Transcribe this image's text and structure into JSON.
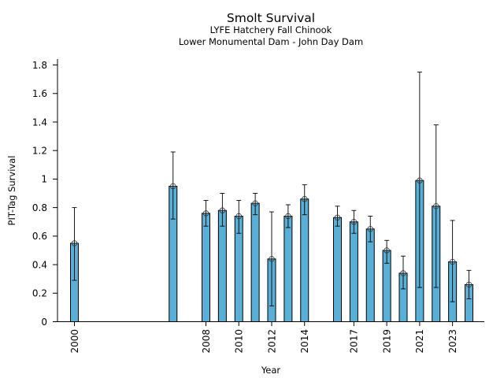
{
  "chart_data": {
    "type": "bar",
    "title": "Smolt Survival",
    "subtitle_lines": [
      "LYFE Hatchery Fall Chinook",
      "Lower Monumental Dam - John Day Dam"
    ],
    "xlabel": "Year",
    "ylabel": "PIT-Tag Survival",
    "xlim": [
      1999,
      2025
    ],
    "ylim": [
      0,
      1.83
    ],
    "yticks": [
      0,
      0.2,
      0.4,
      0.6,
      0.8,
      1,
      1.2,
      1.4,
      1.6,
      1.8
    ],
    "ytick_labels": [
      "0",
      "0.2",
      "0.4",
      "0.6",
      "0.8",
      "1",
      "1.2",
      "1.4",
      "1.6",
      "1.8"
    ],
    "xticks": [
      2000,
      2008,
      2010,
      2012,
      2014,
      2017,
      2019,
      2021,
      2023
    ],
    "xtick_labels": [
      "2000",
      "2008",
      "2010",
      "2012",
      "2014",
      "2017",
      "2019",
      "2021",
      "2023"
    ],
    "grid": false,
    "bar_color": "#5aafd6",
    "edge_color": "#000000",
    "data": [
      {
        "year": 2000,
        "value": 0.55,
        "lower": 0.29,
        "upper": 0.8
      },
      {
        "year": 2006,
        "value": 0.95,
        "lower": 0.72,
        "upper": 1.19
      },
      {
        "year": 2008,
        "value": 0.76,
        "lower": 0.67,
        "upper": 0.85
      },
      {
        "year": 2009,
        "value": 0.78,
        "lower": 0.67,
        "upper": 0.9
      },
      {
        "year": 2010,
        "value": 0.74,
        "lower": 0.62,
        "upper": 0.85
      },
      {
        "year": 2011,
        "value": 0.83,
        "lower": 0.75,
        "upper": 0.9
      },
      {
        "year": 2012,
        "value": 0.44,
        "lower": 0.11,
        "upper": 0.77
      },
      {
        "year": 2013,
        "value": 0.74,
        "lower": 0.66,
        "upper": 0.82
      },
      {
        "year": 2014,
        "value": 0.86,
        "lower": 0.75,
        "upper": 0.96
      },
      {
        "year": 2016,
        "value": 0.73,
        "lower": 0.67,
        "upper": 0.81
      },
      {
        "year": 2017,
        "value": 0.7,
        "lower": 0.62,
        "upper": 0.78
      },
      {
        "year": 2018,
        "value": 0.65,
        "lower": 0.56,
        "upper": 0.74
      },
      {
        "year": 2019,
        "value": 0.5,
        "lower": 0.41,
        "upper": 0.57
      },
      {
        "year": 2020,
        "value": 0.34,
        "lower": 0.23,
        "upper": 0.46
      },
      {
        "year": 2021,
        "value": 0.99,
        "lower": 0.24,
        "upper": 1.75
      },
      {
        "year": 2022,
        "value": 0.81,
        "lower": 0.24,
        "upper": 1.38
      },
      {
        "year": 2023,
        "value": 0.42,
        "lower": 0.14,
        "upper": 0.71
      },
      {
        "year": 2024,
        "value": 0.26,
        "lower": 0.16,
        "upper": 0.36
      }
    ]
  }
}
